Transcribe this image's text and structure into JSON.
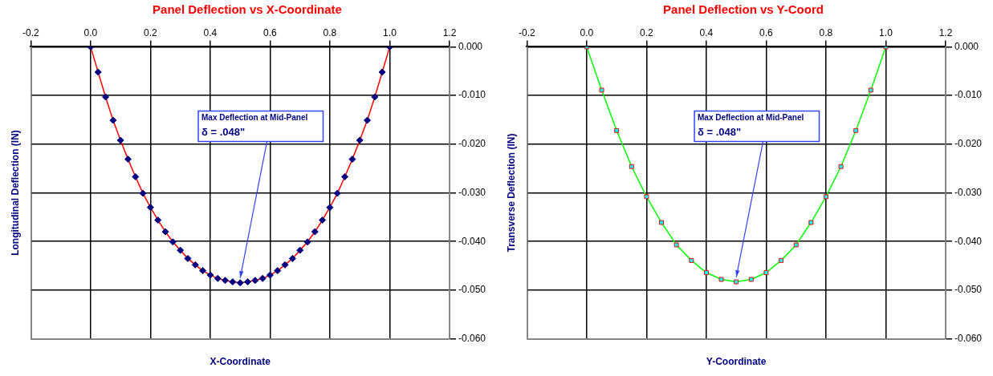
{
  "chart_data": [
    {
      "type": "line",
      "title": "Panel Deflection vs X-Coordinate",
      "xlabel": "X-Coordinate",
      "ylabel": "Longitudinal Deflection (IN)",
      "x": [
        0,
        0.025,
        0.05,
        0.075,
        0.1,
        0.125,
        0.15,
        0.175,
        0.2,
        0.225,
        0.25,
        0.275,
        0.3,
        0.325,
        0.35,
        0.375,
        0.4,
        0.425,
        0.45,
        0.475,
        0.5,
        0.525,
        0.55,
        0.575,
        0.6,
        0.625,
        0.65,
        0.675,
        0.7,
        0.725,
        0.75,
        0.775,
        0.8,
        0.825,
        0.85,
        0.875,
        0.9,
        0.925,
        0.95,
        0.975,
        1.0
      ],
      "series": [
        {
          "color": "#ff0000",
          "values": [
            0,
            -0.0052,
            -0.0103,
            -0.0151,
            -0.0192,
            -0.0231,
            -0.0267,
            -0.0301,
            -0.033,
            -0.0356,
            -0.038,
            -0.0401,
            -0.0418,
            -0.0435,
            -0.0448,
            -0.046,
            -0.0469,
            -0.0476,
            -0.048,
            -0.0483,
            -0.0485,
            -0.0483,
            -0.048,
            -0.0476,
            -0.0469,
            -0.046,
            -0.0448,
            -0.0435,
            -0.0418,
            -0.0401,
            -0.038,
            -0.0356,
            -0.033,
            -0.0301,
            -0.0267,
            -0.0231,
            -0.0192,
            -0.0151,
            -0.0103,
            -0.0052,
            0
          ]
        }
      ],
      "marker": "diamond",
      "line_style": "solid",
      "grid": true,
      "legend": false,
      "xlim": [
        -0.2,
        1.2
      ],
      "xticks": [
        {
          "value": -0.2,
          "label": "-0.2"
        },
        {
          "value": 0,
          "label": "0.0"
        },
        {
          "value": 0.2,
          "label": "0.2"
        },
        {
          "value": 0.4,
          "label": "0.4"
        },
        {
          "value": 0.6,
          "label": "0.6"
        },
        {
          "value": 0.8,
          "label": "0.8"
        },
        {
          "value": 1,
          "label": "1.0"
        },
        {
          "value": 1.2,
          "label": "1.2"
        }
      ],
      "ylim": [
        -0.06,
        0
      ],
      "yticks": [
        {
          "value": 0,
          "label": "0.000"
        },
        {
          "value": -0.01,
          "label": "-0.010"
        },
        {
          "value": -0.02,
          "label": "-0.020"
        },
        {
          "value": -0.03,
          "label": "-0.030"
        },
        {
          "value": -0.04,
          "label": "-0.040"
        },
        {
          "value": -0.05,
          "label": "-0.050"
        },
        {
          "value": -0.06,
          "label": "-0.060"
        }
      ],
      "annotations": [
        {
          "text": "Max Deflection at Mid-Panel\nδ = .048\"",
          "x": 0.5,
          "y": -0.0485
        }
      ]
    },
    {
      "type": "line",
      "title": "Panel Deflection vs Y-Coord",
      "xlabel": "Y-Coordinate",
      "ylabel": "Transverse Deflection (IN)",
      "x": [
        0,
        0.05,
        0.1,
        0.15,
        0.2,
        0.25,
        0.3,
        0.35,
        0.4,
        0.45,
        0.5,
        0.55,
        0.6,
        0.65,
        0.7,
        0.75,
        0.8,
        0.85,
        0.9,
        0.95,
        1.0
      ],
      "series": [
        {
          "color": "#00ff00",
          "values": [
            0,
            -0.0089,
            -0.0172,
            -0.0246,
            -0.0308,
            -0.0361,
            -0.0407,
            -0.0439,
            -0.0464,
            -0.0478,
            -0.0483,
            -0.0478,
            -0.0464,
            -0.0439,
            -0.0407,
            -0.0361,
            -0.0308,
            -0.0246,
            -0.0172,
            -0.0089,
            0
          ]
        }
      ],
      "marker": "square",
      "line_style": "solid",
      "grid": true,
      "legend": false,
      "xlim": [
        -0.2,
        1.2
      ],
      "xticks": [
        {
          "value": -0.2,
          "label": "-0.2"
        },
        {
          "value": 0,
          "label": "0.0"
        },
        {
          "value": 0.2,
          "label": "0.2"
        },
        {
          "value": 0.4,
          "label": "0.4"
        },
        {
          "value": 0.6,
          "label": "0.6"
        },
        {
          "value": 0.8,
          "label": "0.8"
        },
        {
          "value": 1,
          "label": "1.0"
        },
        {
          "value": 1.2,
          "label": "1.2"
        }
      ],
      "ylim": [
        -0.06,
        0
      ],
      "yticks": [
        {
          "value": 0,
          "label": "0.000"
        },
        {
          "value": -0.01,
          "label": "-0.010"
        },
        {
          "value": -0.02,
          "label": "-0.020"
        },
        {
          "value": -0.03,
          "label": "-0.030"
        },
        {
          "value": -0.04,
          "label": "-0.040"
        },
        {
          "value": -0.05,
          "label": "-0.050"
        },
        {
          "value": -0.06,
          "label": "-0.060"
        }
      ],
      "annotations": [
        {
          "text": "Max Deflection at Mid-Panel\nδ = .048\"",
          "x": 0.5,
          "y": -0.0483
        }
      ]
    }
  ]
}
